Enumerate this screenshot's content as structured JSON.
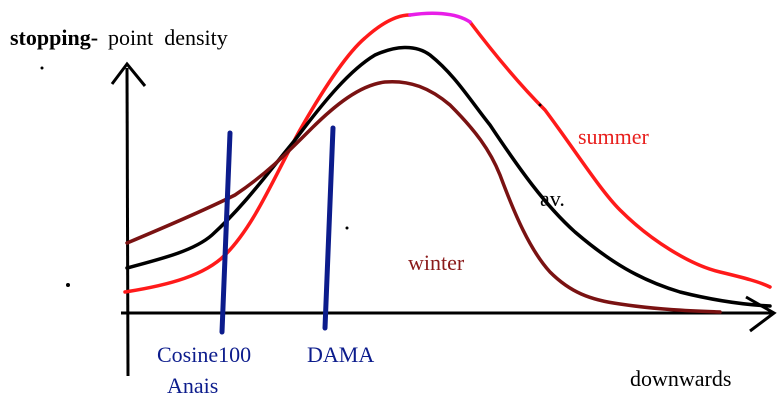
{
  "y_axis_label": {
    "bold_part": "stopping-",
    "rest": "point  density"
  },
  "x_axis_label": "downwards",
  "curves": [
    {
      "label": "summer"
    },
    {
      "label": "av."
    },
    {
      "label": "winter"
    }
  ],
  "markers": [
    {
      "label_lines": [
        "Cosine100",
        "Anais"
      ]
    },
    {
      "label_lines": [
        "DAMA"
      ]
    }
  ]
}
